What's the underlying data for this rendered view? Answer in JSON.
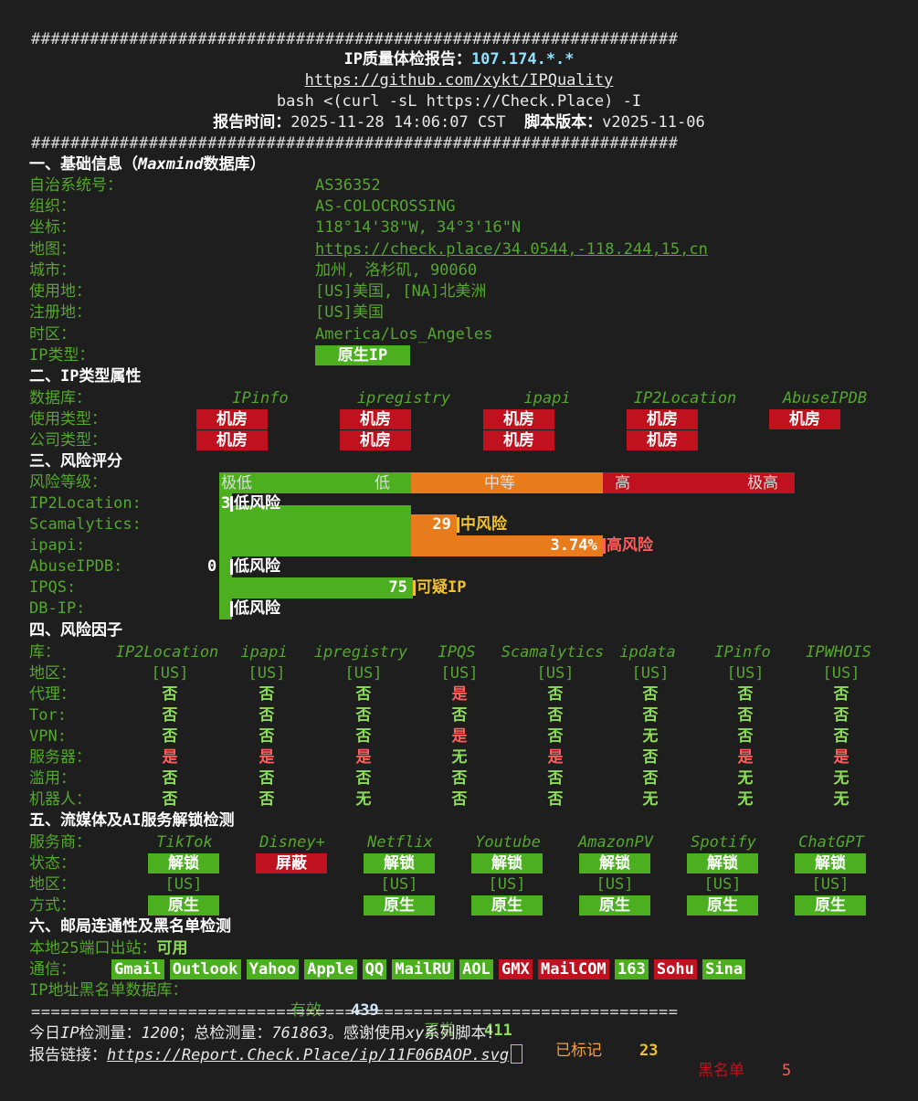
{
  "header": {
    "hash_line": "##################################################################",
    "title_label": "IP质量体检报告：",
    "title_ip": "107.174.*.*",
    "repo_url": "https://github.com/xykt/IPQuality",
    "command": "bash <(curl -sL https://Check.Place) -I",
    "report_time_label": "报告时间：",
    "report_time": "2025-11-28 14:06:07 CST",
    "script_version_label": "脚本版本：",
    "script_version": "v2025-11-06"
  },
  "basic": {
    "heading_prefix": "一、基础信息（",
    "heading_source": "Maxmind",
    "heading_suffix": "数据库）",
    "items": [
      {
        "label": "自治系统号：",
        "value": "AS36352"
      },
      {
        "label": "组织：",
        "value": "AS-COLOCROSSING"
      },
      {
        "label": "坐标：",
        "value": "118°14'38\"W, 34°3'16\"N"
      },
      {
        "label": "地图：",
        "value": "https://check.place/34.0544,-118.244,15,cn"
      },
      {
        "label": "城市：",
        "value": "加州, 洛杉矶, 90060"
      },
      {
        "label": "使用地：",
        "value": "[US]美国, [NA]北美洲"
      },
      {
        "label": "注册地：",
        "value": "[US]美国"
      },
      {
        "label": "时区：",
        "value": "America/Los_Angeles"
      },
      {
        "label": "IP类型：",
        "value": "原生IP"
      }
    ]
  },
  "iptype": {
    "heading": "二、IP类型属性",
    "db_label": "数据库：",
    "usage_label": "使用类型：",
    "company_label": "公司类型：",
    "databases": [
      "IPinfo",
      "ipregistry",
      "ipapi",
      "IP2Location",
      "AbuseIPDB"
    ],
    "usage": [
      "机房",
      "机房",
      "机房",
      "机房",
      "机房"
    ],
    "company": [
      "机房",
      "机房",
      "机房",
      "机房"
    ]
  },
  "risk": {
    "heading": "三、风险评分",
    "level_label": "风险等级：",
    "scale": {
      "very_low": "极低",
      "low": "低",
      "medium": "中等",
      "high": "高",
      "very_high": "极高"
    },
    "colors": {
      "green": "#4caf1f",
      "orange": "#e87b1c",
      "red": "#c0121e"
    },
    "items": [
      {
        "source": "IP2Location:",
        "score": "3",
        "fraction": 0.03,
        "verdict": "低风险",
        "level": "low"
      },
      {
        "source": "Scamalytics:",
        "score": "29",
        "fraction": 0.29,
        "verdict": "中风险",
        "level": "medium"
      },
      {
        "source": "ipapi:",
        "score": "3.74%",
        "fraction": 0.6,
        "verdict": "高风险",
        "level": "high"
      },
      {
        "source": "AbuseIPDB:",
        "score": "0",
        "fraction": 0.0,
        "verdict": "低风险",
        "level": "low"
      },
      {
        "source": "IPQS:",
        "score": "75",
        "fraction": 0.33,
        "verdict": "可疑IP",
        "level": "suspect"
      },
      {
        "source": "DB-IP:",
        "score": "",
        "fraction": 0.0,
        "verdict": "低风险",
        "level": "low"
      }
    ]
  },
  "factors": {
    "heading": "四、风险因子",
    "lib_label": "库：",
    "libraries": [
      "IP2Location",
      "ipapi",
      "ipregistry",
      "IPQS",
      "Scamalytics",
      "ipdata",
      "IPinfo",
      "IPWHOIS"
    ],
    "rows": [
      {
        "label": "地区：",
        "values": [
          "[US]",
          "[US]",
          "[US]",
          "[US]",
          "[US]",
          "[US]",
          "[US]",
          "[US]"
        ]
      },
      {
        "label": "代理：",
        "values": [
          "否",
          "否",
          "否",
          "是",
          "否",
          "否",
          "否",
          "否"
        ]
      },
      {
        "label": "Tor:",
        "values": [
          "否",
          "否",
          "否",
          "否",
          "否",
          "否",
          "否",
          "否"
        ]
      },
      {
        "label": "VPN:",
        "values": [
          "否",
          "否",
          "否",
          "是",
          "否",
          "无",
          "否",
          "否"
        ]
      },
      {
        "label": "服务器：",
        "values": [
          "是",
          "是",
          "是",
          "无",
          "是",
          "否",
          "是",
          "是"
        ]
      },
      {
        "label": "滥用：",
        "values": [
          "否",
          "否",
          "否",
          "否",
          "否",
          "否",
          "无",
          "无"
        ]
      },
      {
        "label": "机器人：",
        "values": [
          "否",
          "否",
          "无",
          "否",
          "否",
          "无",
          "无",
          "无"
        ]
      }
    ]
  },
  "streaming": {
    "heading": "五、流媒体及AI服务解锁检测",
    "service_label": "服务商：",
    "status_label": "状态：",
    "region_label": "地区：",
    "method_label": "方式：",
    "services": [
      {
        "name": "TikTok",
        "status": "解锁",
        "region": "[US]",
        "method": "原生",
        "ok": true
      },
      {
        "name": "Disney+",
        "status": "屏蔽",
        "region": "",
        "method": "",
        "ok": false
      },
      {
        "name": "Netflix",
        "status": "解锁",
        "region": "[US]",
        "method": "原生",
        "ok": true
      },
      {
        "name": "Youtube",
        "status": "解锁",
        "region": "[US]",
        "method": "原生",
        "ok": true
      },
      {
        "name": "AmazonPV",
        "status": "解锁",
        "region": "[US]",
        "method": "原生",
        "ok": true
      },
      {
        "name": "Spotify",
        "status": "解锁",
        "region": "[US]",
        "method": "原生",
        "ok": true
      },
      {
        "name": "ChatGPT",
        "status": "解锁",
        "region": "[US]",
        "method": "原生",
        "ok": true
      }
    ]
  },
  "mail": {
    "heading": "六、邮局连通性及黑名单检测",
    "port_label": "本地25端口出站：",
    "port_status": "可用",
    "comm_label": "通信：",
    "providers": [
      {
        "name": "Gmail",
        "ok": true
      },
      {
        "name": "Outlook",
        "ok": true
      },
      {
        "name": "Yahoo",
        "ok": true
      },
      {
        "name": "Apple",
        "ok": true
      },
      {
        "name": "QQ",
        "ok": true
      },
      {
        "name": "MailRU",
        "ok": true
      },
      {
        "name": "AOL",
        "ok": true
      },
      {
        "name": "GMX",
        "ok": false
      },
      {
        "name": "MailCOM",
        "ok": false
      },
      {
        "name": "163",
        "ok": true
      },
      {
        "name": "Sohu",
        "ok": false
      },
      {
        "name": "Sina",
        "ok": true
      }
    ],
    "blacklist_label": "IP地址黑名单数据库：",
    "valid_label": "有效",
    "valid": "439",
    "normal_label": "正常",
    "normal": "411",
    "marked_label": "已标记",
    "marked": "23",
    "black_label": "黑名单",
    "black": "5"
  },
  "footer": {
    "eq_line": "==================================================================",
    "today_prefix": "今日",
    "today_ip": "IP",
    "today_label": "检测量：",
    "today_count": "1200",
    "total_label": "；总检测量：",
    "total_count": "761863",
    "thanks_prefix": "。感谢使用",
    "thanks_xy": "xy",
    "thanks_suffix": "系列脚本！",
    "link_label": "报告链接：",
    "link": "https://Report.Check.Place/ip/11F06BAOP.svg"
  }
}
